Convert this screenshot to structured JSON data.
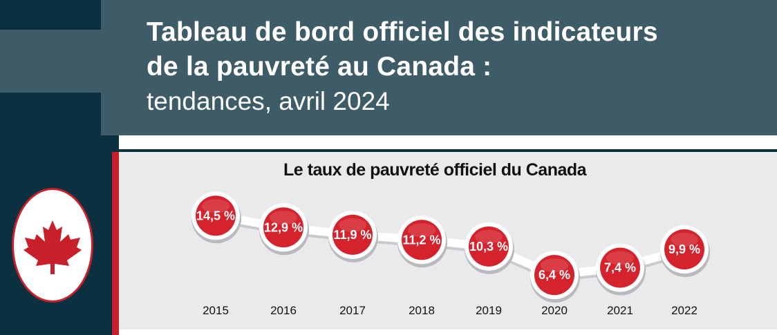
{
  "header": {
    "title_line1": "Tableau de bord officiel des indicateurs",
    "title_line2": "de la pauvreté au Canada :",
    "subtitle": "tendances, avril 2024"
  },
  "emblem": {
    "icon": "maple-leaf-icon"
  },
  "colors": {
    "navy": "#0b3140",
    "slate": "#3e5c68",
    "red": "#c8202a",
    "panel": "#e9eaec"
  },
  "chart_data": {
    "type": "line",
    "title": "Le taux de pauvreté officiel du Canada",
    "categories": [
      "2015",
      "2016",
      "2017",
      "2018",
      "2019",
      "2020",
      "2021",
      "2022"
    ],
    "values": [
      14.5,
      12.9,
      11.9,
      11.2,
      10.3,
      6.4,
      7.4,
      9.9
    ],
    "labels": [
      "14,5 %",
      "12,9 %",
      "11,9 %",
      "11,2 %",
      "10,3 %",
      "6,4 %",
      "7,4 %",
      "9,9 %"
    ],
    "unit": "%",
    "xlabel": "",
    "ylabel": ""
  }
}
